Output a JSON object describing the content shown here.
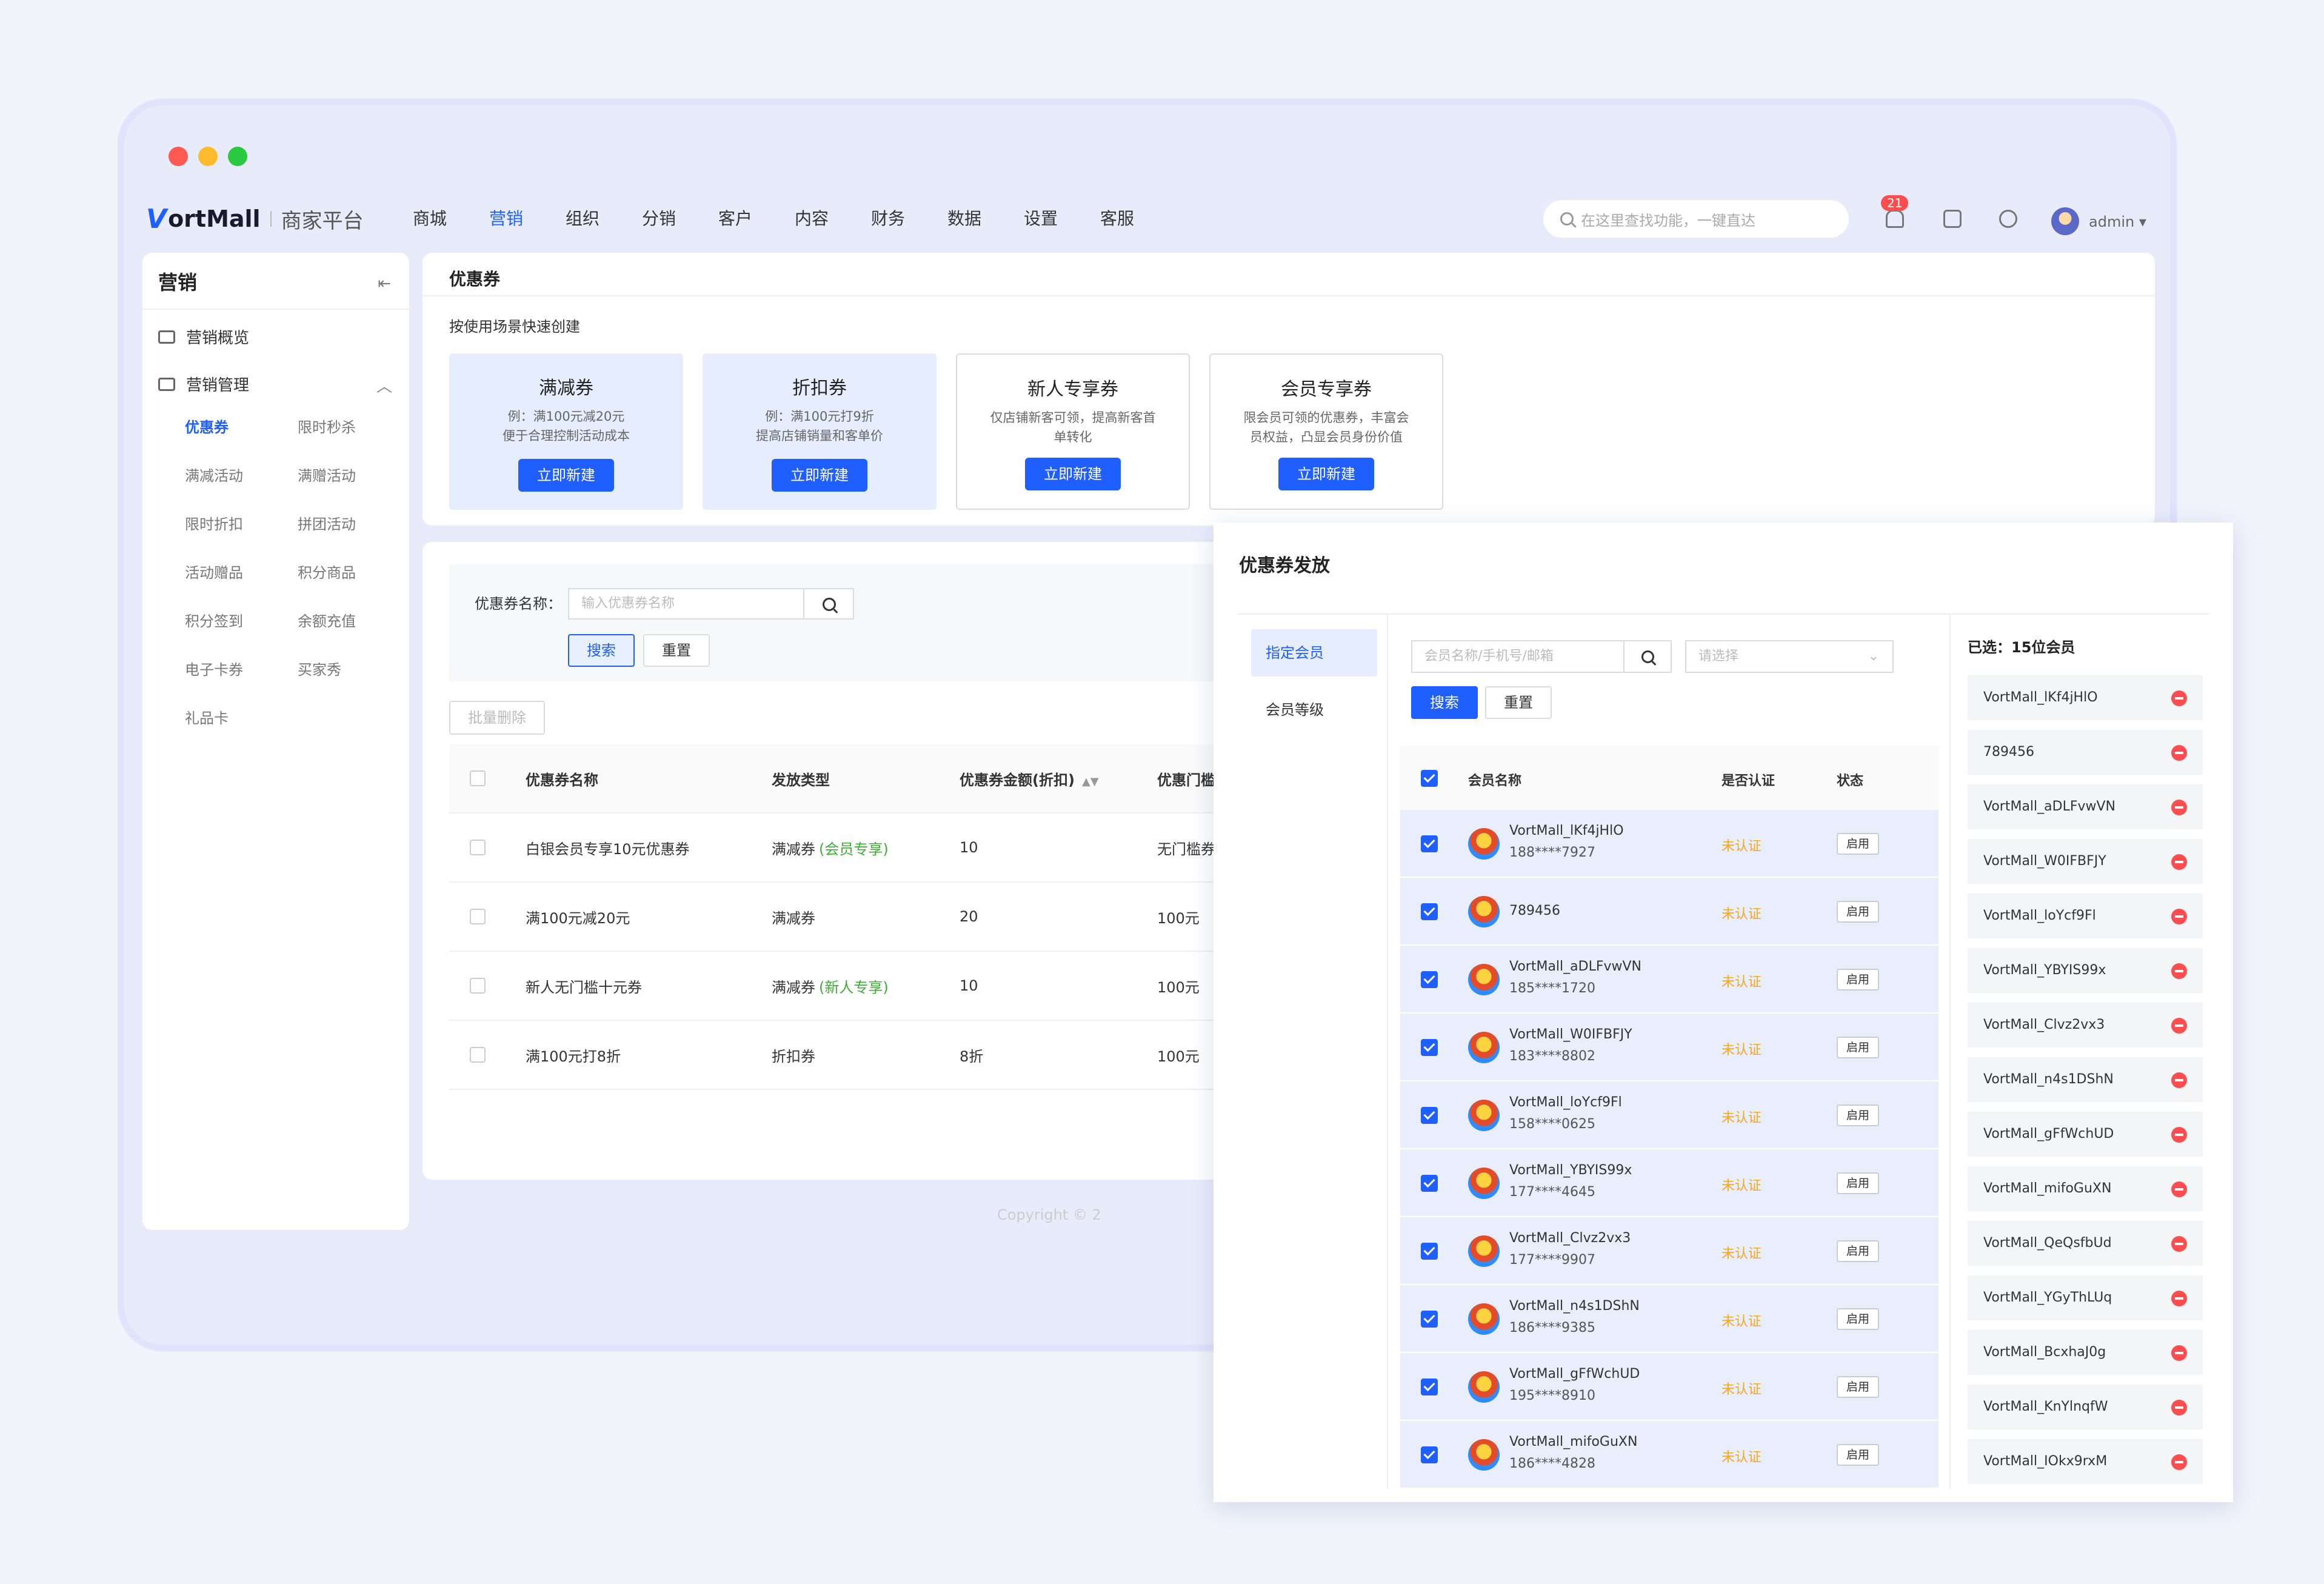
{
  "window": {
    "traffic_lights": [
      "close",
      "minimize",
      "maximize"
    ]
  },
  "header": {
    "logo_mark": "V",
    "logo_text": "ortMall",
    "logo_sub": "商家平台",
    "nav": [
      "商城",
      "营销",
      "组织",
      "分销",
      "客户",
      "内容",
      "财务",
      "数据",
      "设置",
      "客服"
    ],
    "active_nav": "营销",
    "search_placeholder": "在这里查找功能，一键直达",
    "notification_count": "21",
    "user": "admin ▾"
  },
  "sidebar": {
    "title": "营销",
    "collapse_icon": "⇤",
    "group1": "营销概览",
    "group2": "营销管理",
    "group2_chevron": "︿",
    "items": [
      {
        "label": "优惠券",
        "active": true
      },
      {
        "label": "限时秒杀"
      },
      {
        "label": "满减活动"
      },
      {
        "label": "满赠活动"
      },
      {
        "label": "限时折扣"
      },
      {
        "label": "拼团活动"
      },
      {
        "label": "活动赠品"
      },
      {
        "label": "积分商品"
      },
      {
        "label": "积分签到"
      },
      {
        "label": "余额充值"
      },
      {
        "label": "电子卡券"
      },
      {
        "label": "买家秀"
      },
      {
        "label": "礼品卡"
      }
    ]
  },
  "coupon_page": {
    "title": "优惠券",
    "quick_create": "按使用场景快速创建",
    "templates": [
      {
        "name": "满减券",
        "desc": "例：满100元减20元\n便于合理控制活动成本",
        "button": "立即新建"
      },
      {
        "name": "折扣券",
        "desc": "例：满100元打9折\n提高店铺销量和客单价",
        "button": "立即新建"
      },
      {
        "name": "新人专享券",
        "desc": "仅店铺新客可领，提高新客首单转化",
        "button": "立即新建"
      },
      {
        "name": "会员专享券",
        "desc": "限会员可领的优惠券，丰富会员权益，凸显会员身份价值",
        "button": "立即新建"
      }
    ],
    "filter": {
      "label": "优惠券名称：",
      "placeholder": "输入优惠券名称",
      "search": "搜索",
      "reset": "重置"
    },
    "bulk_delete": "批量删除",
    "table": {
      "headers": [
        "优惠券名称",
        "发放类型",
        "优惠券金额(折扣)",
        "优惠门槛"
      ],
      "sort_icon": "▲▼",
      "rows": [
        {
          "name": "白银会员专享10元优惠券",
          "type": "满减券",
          "tag": "(会员专享)",
          "amount": "10",
          "threshold": "无门槛券"
        },
        {
          "name": "满100元减20元",
          "type": "满减券",
          "tag": "",
          "amount": "20",
          "threshold": "100元"
        },
        {
          "name": "新人无门槛十元券",
          "type": "满减券",
          "tag": "(新人专享)",
          "amount": "10",
          "threshold": "100元"
        },
        {
          "name": "满100元打8折",
          "type": "折扣券",
          "tag": "",
          "amount": "8折",
          "threshold": "100元"
        }
      ]
    },
    "copyright": "Copyright © 2"
  },
  "modal": {
    "title": "优惠券发放",
    "tabs": [
      "指定会员",
      "会员等级"
    ],
    "search_placeholder": "会员名称/手机号/邮箱",
    "select_placeholder": "请选择",
    "select_chevron": "⌄",
    "search": "搜索",
    "reset": "重置",
    "headers": [
      "会员名称",
      "是否认证",
      "状态"
    ],
    "members": [
      {
        "name": "VortMall_lKf4jHlO",
        "phone": "188****7927",
        "cert": "未认证",
        "status": "启用"
      },
      {
        "name": "789456",
        "phone": "",
        "cert": "未认证",
        "status": "启用"
      },
      {
        "name": "VortMall_aDLFvwVN",
        "phone": "185****1720",
        "cert": "未认证",
        "status": "启用"
      },
      {
        "name": "VortMall_W0IFBFJY",
        "phone": "183****8802",
        "cert": "未认证",
        "status": "启用"
      },
      {
        "name": "VortMall_loYcf9Fl",
        "phone": "158****0625",
        "cert": "未认证",
        "status": "启用"
      },
      {
        "name": "VortMall_YBYIS99x",
        "phone": "177****4645",
        "cert": "未认证",
        "status": "启用"
      },
      {
        "name": "VortMall_Clvz2vx3",
        "phone": "177****9907",
        "cert": "未认证",
        "status": "启用"
      },
      {
        "name": "VortMall_n4s1DShN",
        "phone": "186****9385",
        "cert": "未认证",
        "status": "启用"
      },
      {
        "name": "VortMall_gFfWchUD",
        "phone": "195****8910",
        "cert": "未认证",
        "status": "启用"
      },
      {
        "name": "VortMall_mifoGuXN",
        "phone": "186****4828",
        "cert": "未认证",
        "status": "启用"
      }
    ],
    "selected_title": "已选：15位会员",
    "selected": [
      "VortMall_lKf4jHlO",
      "789456",
      "VortMall_aDLFvwVN",
      "VortMall_W0IFBFJY",
      "VortMall_loYcf9Fl",
      "VortMall_YBYIS99x",
      "VortMall_Clvz2vx3",
      "VortMall_n4s1DShN",
      "VortMall_gFfWchUD",
      "VortMall_mifoGuXN",
      "VortMall_QeQsfbUd",
      "VortMall_YGyThLUq",
      "VortMall_BcxhaJ0g",
      "VortMall_KnYlnqfW",
      "VortMall_IOkx9rxM"
    ]
  }
}
